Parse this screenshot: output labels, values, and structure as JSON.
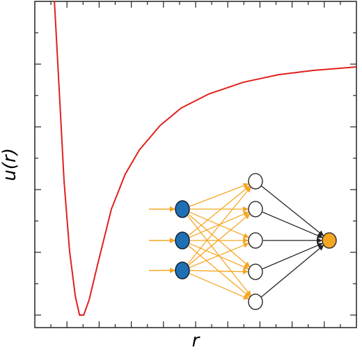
{
  "chart_data": {
    "type": "line",
    "x_label": "r",
    "y_label": "u(r)",
    "xlim": [
      0,
      10
    ],
    "ylim": [
      -1.05,
      0.25
    ],
    "xticks": [
      0.5,
      1,
      1.5,
      2,
      2.5,
      3,
      3.5,
      4,
      4.5,
      5,
      5.5,
      6,
      6.5,
      7,
      7.5,
      8,
      8.5,
      9,
      9.5
    ],
    "yticks": [
      -1,
      -0.875,
      -0.75,
      -0.625,
      -0.5,
      -0.375,
      -0.25,
      -0.125,
      0,
      0.125
    ],
    "series": [
      {
        "color": "#e0201b",
        "x": [
          0.61,
          0.76,
          0.91,
          1.08,
          1.26,
          1.39,
          1.52,
          1.69,
          1.95,
          2.38,
          2.81,
          3.25,
          3.9,
          4.55,
          5.41,
          6.49,
          7.58,
          8.66,
          10
        ],
        "values": [
          0.25,
          -0.106,
          -0.467,
          -0.744,
          -0.925,
          -1.0,
          -1.0,
          -0.939,
          -0.8,
          -0.578,
          -0.439,
          -0.342,
          -0.244,
          -0.175,
          -0.119,
          -0.072,
          -0.042,
          -0.025,
          -0.011
        ]
      }
    ]
  }
}
